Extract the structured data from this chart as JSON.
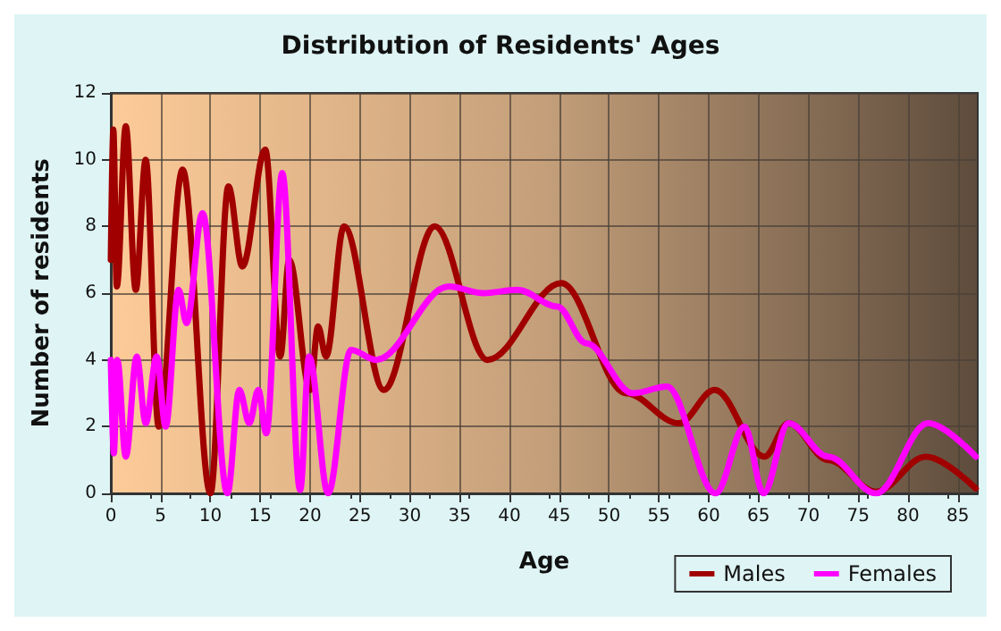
{
  "chart_data": {
    "type": "line",
    "title": "Distribution of Residents' Ages",
    "xlabel": "Age",
    "ylabel": "Number of residents",
    "xlim": [
      0,
      87
    ],
    "xticks": [
      0,
      5,
      10,
      15,
      20,
      25,
      30,
      35,
      40,
      45,
      50,
      55,
      60,
      65,
      70,
      75,
      80,
      85
    ],
    "ylim": [
      0,
      12
    ],
    "yticks": [
      0,
      2,
      4,
      6,
      8,
      10,
      12
    ],
    "grid": true,
    "legend": "bottom right",
    "marker": "none",
    "line_style": "solid",
    "series": [
      {
        "name": "Males",
        "color": "#a00000",
        "x": [
          0,
          0.25,
          0.6,
          1.5,
          2.5,
          3.5,
          4.8,
          7.2,
          10,
          11.8,
          13.2,
          15.5,
          17,
          17.9,
          20,
          20.8,
          21.6,
          23.4,
          27.4,
          32.5,
          37.8,
          45.2,
          51.7,
          57,
          60.6,
          65.6,
          68,
          72,
          76.8,
          81.8,
          86.8
        ],
        "values": [
          7,
          10.9,
          6.2,
          11,
          6.1,
          10,
          2,
          9.7,
          0,
          9.2,
          6.8,
          10.3,
          4.1,
          7,
          3.1,
          5,
          4.1,
          8,
          3.1,
          8,
          4,
          6.3,
          3,
          2.1,
          3.1,
          1.1,
          2.1,
          1,
          0.05,
          1.1,
          0.15
        ]
      },
      {
        "name": "Females",
        "color": "#ff00ff",
        "x": [
          0,
          0.3,
          0.65,
          1.5,
          2.6,
          3.5,
          4.6,
          5.5,
          6.8,
          7.6,
          9.2,
          11.7,
          12.9,
          13.9,
          14.8,
          15.6,
          17.2,
          19,
          19.9,
          21.8,
          24.1,
          26.6,
          33.9,
          37.4,
          40.8,
          44.8,
          47.7,
          52.4,
          55.8,
          60.7,
          63.6,
          65.5,
          68,
          72,
          76.8,
          82,
          86.8
        ],
        "values": [
          4,
          1.2,
          4,
          1.1,
          4.1,
          2.1,
          4.1,
          2,
          6.1,
          5.1,
          8.4,
          0,
          3.1,
          2.1,
          3.1,
          1.8,
          9.6,
          0.1,
          4.1,
          0,
          4.3,
          4,
          6.2,
          6,
          6.1,
          5.6,
          4.5,
          3,
          3.2,
          0,
          2,
          0,
          2.1,
          1.1,
          0,
          2.1,
          1.1
        ]
      }
    ]
  }
}
